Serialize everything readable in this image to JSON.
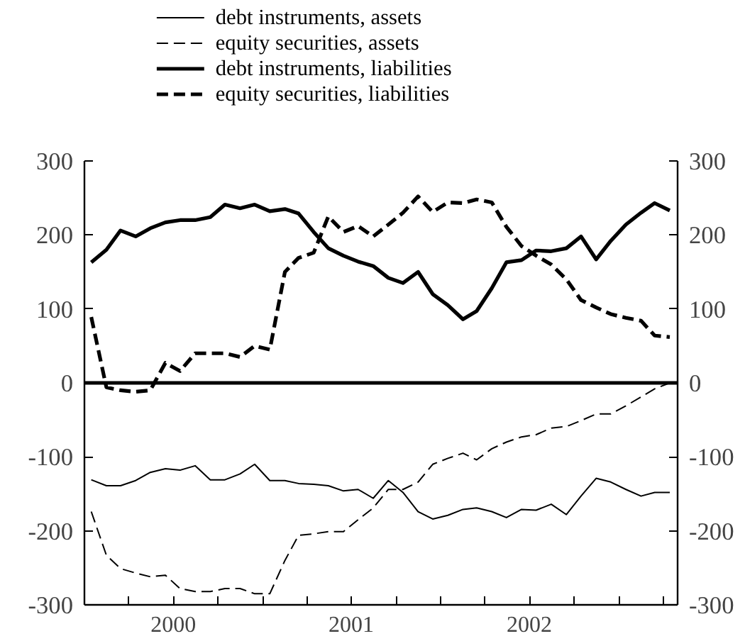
{
  "chart_data": {
    "type": "line",
    "x": [
      "2000-01-15",
      "2000-02-15",
      "2000-03-15",
      "2000-04-15",
      "2000-05-15",
      "2000-06-15",
      "2000-07-15",
      "2000-08-15",
      "2000-09-15",
      "2000-10-15",
      "2000-11-15",
      "2000-12-15",
      "2001-01-15",
      "2001-02-15",
      "2001-03-15",
      "2001-04-15",
      "2001-05-15",
      "2001-06-15",
      "2001-07-15",
      "2001-08-15",
      "2001-09-15",
      "2001-10-15",
      "2001-11-15",
      "2001-12-15",
      "2002-01-15",
      "2002-02-15",
      "2002-03-15",
      "2002-04-15",
      "2002-05-15",
      "2002-06-15",
      "2002-07-15",
      "2002-08-15",
      "2002-09-15",
      "2002-10-15",
      "2002-11-15",
      "2002-12-15",
      "2003-01-15",
      "2003-02-15",
      "2003-03-15",
      "2003-04-15"
    ],
    "series": [
      {
        "name": "debt instruments, assets",
        "color": "#000000",
        "line_style": "solid",
        "values": [
          -131,
          -139,
          -139,
          -132,
          -121,
          -116,
          -118,
          -112,
          -131,
          -131,
          -123,
          -110,
          -132,
          -132,
          -136,
          -137,
          -139,
          -146,
          -144,
          -156,
          -132,
          -148,
          -174,
          -184,
          -179,
          -171,
          -169,
          -174,
          -182,
          -171,
          -172,
          -164,
          -178,
          -153,
          -129,
          -134,
          -144,
          -153,
          -148,
          -148
        ]
      },
      {
        "name": "equity securities, assets",
        "color": "#000000",
        "line_style": "dashed",
        "values": [
          -174,
          -233,
          -251,
          -257,
          -262,
          -260,
          -278,
          -282,
          -282,
          -278,
          -278,
          -285,
          -285,
          -240,
          -206,
          -204,
          -201,
          -201,
          -185,
          -169,
          -144,
          -144,
          -134,
          -110,
          -102,
          -95,
          -104,
          -89,
          -80,
          -73,
          -70,
          -61,
          -59,
          -51,
          -42,
          -42,
          -31,
          -19,
          -8,
          0
        ]
      },
      {
        "name": "debt instruments, liabilities",
        "color": "#000000",
        "line_style": "solid",
        "values": [
          163,
          180,
          206,
          198,
          209,
          217,
          220,
          220,
          224,
          241,
          236,
          241,
          232,
          235,
          229,
          204,
          182,
          172,
          164,
          158,
          142,
          135,
          150,
          120,
          105,
          86,
          97,
          128,
          163,
          166,
          179,
          178,
          182,
          198,
          167,
          192,
          214,
          230,
          243,
          233
        ]
      },
      {
        "name": "equity securities, liabilities",
        "color": "#000000",
        "line_style": "dashed",
        "values": [
          89,
          -6,
          -10,
          -12,
          -10,
          27,
          16,
          40,
          40,
          40,
          35,
          50,
          45,
          150,
          169,
          176,
          225,
          204,
          212,
          198,
          214,
          230,
          252,
          231,
          244,
          243,
          248,
          244,
          211,
          185,
          172,
          160,
          140,
          112,
          102,
          93,
          88,
          84,
          64,
          62
        ]
      }
    ],
    "xlim": [
      "2000-01-01",
      "2003-05-01"
    ],
    "xticks": [
      {
        "value": "2000-04-01",
        "label": null
      },
      {
        "value": "2000-07-01",
        "label": "2000"
      },
      {
        "value": "2000-10-01",
        "label": null
      },
      {
        "value": "2001-01-01",
        "label": null
      },
      {
        "value": "2001-04-01",
        "label": null
      },
      {
        "value": "2001-07-01",
        "label": "2001"
      },
      {
        "value": "2001-10-01",
        "label": null
      },
      {
        "value": "2002-01-01",
        "label": null
      },
      {
        "value": "2002-04-01",
        "label": null
      },
      {
        "value": "2002-07-01",
        "label": "2002"
      },
      {
        "value": "2002-10-01",
        "label": null
      },
      {
        "value": "2003-01-01",
        "label": null
      },
      {
        "value": "2003-04-01",
        "label": null
      }
    ],
    "ylim": [
      -300,
      300
    ],
    "yticks": [
      -300,
      -200,
      -100,
      0,
      100,
      200,
      300
    ],
    "y2lim": [
      -300,
      300
    ],
    "y2ticks": [
      -300,
      -200,
      -100,
      0,
      100,
      200,
      300
    ],
    "ref_lines": [
      {
        "axis": "y",
        "value": 0,
        "label": null,
        "color": "#000000"
      }
    ],
    "grid": false,
    "legend": "top",
    "marker": "none"
  }
}
